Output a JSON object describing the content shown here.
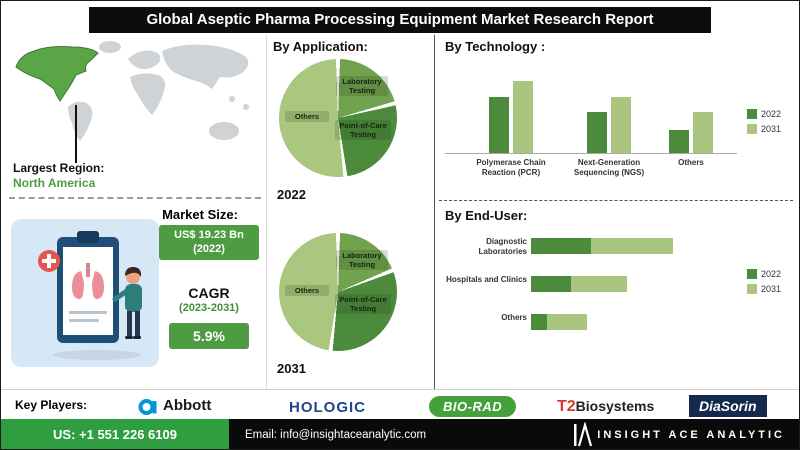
{
  "header": {
    "title": "Global Aseptic Pharma Processing Equipment Market Research Report"
  },
  "region": {
    "label": "Largest Region:",
    "value": "North America"
  },
  "market": {
    "size_label": "Market Size:",
    "size_value_line1": "US$ 19.23 Bn",
    "size_value_line2": "(2022)",
    "cagr_label": "CAGR",
    "cagr_period": "(2023-2031)",
    "cagr_value": "5.9%"
  },
  "chart_data": [
    {
      "id": "application-2022",
      "type": "pie",
      "title": "By Application:",
      "year": "2022",
      "slices": [
        {
          "label": "Laboratory Testing",
          "value": 21,
          "color": "#71a24f"
        },
        {
          "label": "Point-of-Care Testing",
          "value": 27,
          "color": "#4c8a3c"
        },
        {
          "label": "Others",
          "value": 52,
          "color": "#aac77f"
        }
      ]
    },
    {
      "id": "application-2031",
      "type": "pie",
      "title": "By Application:",
      "year": "2031",
      "slices": [
        {
          "label": "Laboratory Testing",
          "value": 19,
          "color": "#71a24f"
        },
        {
          "label": "Point-of-Care Testing",
          "value": 33,
          "color": "#4c8a3c"
        },
        {
          "label": "Others",
          "value": 48,
          "color": "#aac77f"
        }
      ]
    },
    {
      "id": "technology",
      "type": "bar",
      "title": "By Technology :",
      "orientation": "vertical",
      "categories": [
        "Polymerase Chain Reaction (PCR)",
        "Next-Generation Sequencing (NGS)",
        "Others"
      ],
      "series": [
        {
          "name": "2022",
          "color": "#4c8a3c",
          "values": [
            62,
            45,
            25
          ]
        },
        {
          "name": "2031",
          "color": "#a9c57f",
          "values": [
            80,
            62,
            45
          ]
        }
      ],
      "ylim": [
        0,
        100
      ],
      "legend_position": "right",
      "note": "axis unlabeled; values estimated relative to chart height"
    },
    {
      "id": "end-user",
      "type": "bar",
      "title": "By End-User:",
      "orientation": "horizontal",
      "stacked": true,
      "categories": [
        "Diagnostic Laboratories",
        "Hospitals and Clinics",
        "Others"
      ],
      "series": [
        {
          "name": "2022",
          "color": "#4c8a3c",
          "values": [
            30,
            20,
            8
          ]
        },
        {
          "name": "2031",
          "color": "#a9c57f",
          "values": [
            41,
            28,
            20
          ]
        }
      ],
      "xlim": [
        0,
        100
      ],
      "legend_position": "right",
      "note": "axis unlabeled; values estimated relative to bar length"
    }
  ],
  "key_players": {
    "label": "Key Players:",
    "abbott": "Abbott",
    "hologic": "HOLOGIC",
    "biorad": "BIO-RAD",
    "t2_prefix": "T2",
    "t2_suffix": "Biosystems",
    "diasorin": "DiaSorin"
  },
  "footer": {
    "phone": "US: +1 551 226 6109",
    "email": "Email: info@insightaceanalytic.com",
    "brand": "INSIGHT ACE ANALYTIC"
  },
  "colors": {
    "accent_dark_green": "#4c8a3c",
    "accent_light_green": "#a9c57f",
    "box_green": "#4e9b44",
    "footer_green": "#2f9e41",
    "header_black": "#0d0d0d",
    "map_gray": "#cfd3d6",
    "map_highlight": "#5aa546"
  }
}
